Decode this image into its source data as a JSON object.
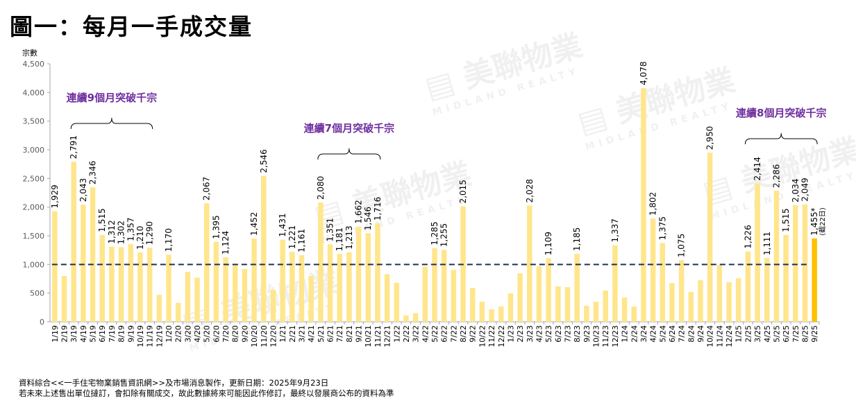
{
  "title": "圖一：每月一手成交量",
  "watermark": "美聯物業 MIDLAND REALTY",
  "notes": [
    "資料綜合<<一手住宅物業銷售資訊網>>及市場消息製作，更新日期：2025年9月23日",
    "若未來上述售出單位撻訂，會扣除有關成交，故此數據將來可能因此作修訂，最終以發展商公布的資料為準"
  ],
  "colors": {
    "bar": "#FFE68C",
    "bar_latest": "#FFC000",
    "threshold": "#1F2D5A",
    "annotation": "#7030A0"
  },
  "chart_data": {
    "type": "bar",
    "title": "圖一：每月一手成交量",
    "ylabel": "宗數",
    "xlabel": "",
    "ylim": [
      0,
      4500
    ],
    "yticks": [
      0,
      500,
      1000,
      1500,
      2000,
      2500,
      3000,
      3500,
      4000,
      4500
    ],
    "ytick_labels": [
      "0",
      "500",
      "1,000",
      "1,500",
      "2,000",
      "2,500",
      "3,000",
      "3,500",
      "4,000",
      "4,500"
    ],
    "grid": false,
    "threshold": 1000,
    "categories": [
      "1/19",
      "2/19",
      "3/19",
      "4/19",
      "5/19",
      "6/19",
      "7/19",
      "8/19",
      "9/19",
      "10/19",
      "11/19",
      "12/19",
      "1/20",
      "2/20",
      "3/20",
      "4/20",
      "5/20",
      "6/20",
      "7/20",
      "8/20",
      "9/20",
      "10/20",
      "11/20",
      "12/20",
      "1/21",
      "2/21",
      "3/21",
      "4/21",
      "5/21",
      "6/21",
      "7/21",
      "8/21",
      "9/21",
      "10/21",
      "11/21",
      "12/21",
      "1/22",
      "2/22",
      "3/22",
      "4/22",
      "5/22",
      "6/22",
      "7/22",
      "8/22",
      "9/22",
      "10/22",
      "11/22",
      "12/22",
      "1/23",
      "2/23",
      "3/23",
      "4/23",
      "5/23",
      "6/23",
      "7/23",
      "8/23",
      "9/23",
      "10/23",
      "11/23",
      "12/23",
      "1/24",
      "2/24",
      "3/24",
      "4/24",
      "5/24",
      "6/24",
      "7/24",
      "8/24",
      "9/24",
      "10/24",
      "11/24",
      "12/24",
      "1/25",
      "2/25",
      "3/25",
      "4/25",
      "5/25",
      "6/25",
      "7/25",
      "8/25",
      "9/25"
    ],
    "values": [
      1929,
      800,
      2791,
      2043,
      2346,
      1515,
      1312,
      1302,
      1357,
      1210,
      1290,
      470,
      1170,
      330,
      870,
      770,
      2067,
      1395,
      1124,
      990,
      920,
      1452,
      2546,
      560,
      1431,
      1221,
      1161,
      800,
      2080,
      1351,
      1181,
      1213,
      1662,
      1546,
      1716,
      830,
      680,
      110,
      150,
      960,
      1285,
      1255,
      905,
      2015,
      590,
      350,
      218,
      266,
      496,
      846,
      2028,
      967,
      1109,
      617,
      605,
      1185,
      278,
      350,
      544,
      1337,
      423,
      266,
      4078,
      1802,
      1375,
      677,
      1075,
      520,
      725,
      2950,
      990,
      690,
      760,
      1226,
      2414,
      1111,
      2286,
      1515,
      2034,
      2049,
      1455
    ],
    "data_labels": {
      "0": "1,929",
      "2": "2,791",
      "3": "2,043",
      "4": "2,346",
      "5": "1,515",
      "6": "1,312",
      "7": "1,302",
      "8": "1,357",
      "9": "1,210",
      "10": "1,290",
      "12": "1,170",
      "16": "2,067",
      "17": "1,395",
      "18": "1,124",
      "21": "1,452",
      "22": "2,546",
      "24": "1,431",
      "25": "1,221",
      "26": "1,161",
      "28": "2,080",
      "29": "1,351",
      "30": "1,181",
      "31": "1,213",
      "32": "1,662",
      "33": "1,546",
      "34": "1,716",
      "40": "1,285",
      "41": "1,255",
      "43": "2,015",
      "50": "2,028",
      "52": "1,109",
      "55": "1,185",
      "59": "1,337",
      "62": "4,078",
      "63": "1,802",
      "64": "1,375",
      "66": "1,075",
      "69": "2,950",
      "73": "1,226",
      "74": "2,414",
      "75": "1,111",
      "76": "2,286",
      "77": "1,515",
      "78": "2,034",
      "79": "2,049",
      "80": "1,455*"
    },
    "latest_note": "(截22日)",
    "annotations": [
      {
        "text": "連續9個月突破千宗",
        "from": "3/19",
        "to": "11/19"
      },
      {
        "text": "連續7個月突破千宗",
        "from": "5/21",
        "to": "11/21"
      },
      {
        "text": "連續8個月突破千宗",
        "from": "2/25",
        "to": "9/25"
      }
    ]
  }
}
